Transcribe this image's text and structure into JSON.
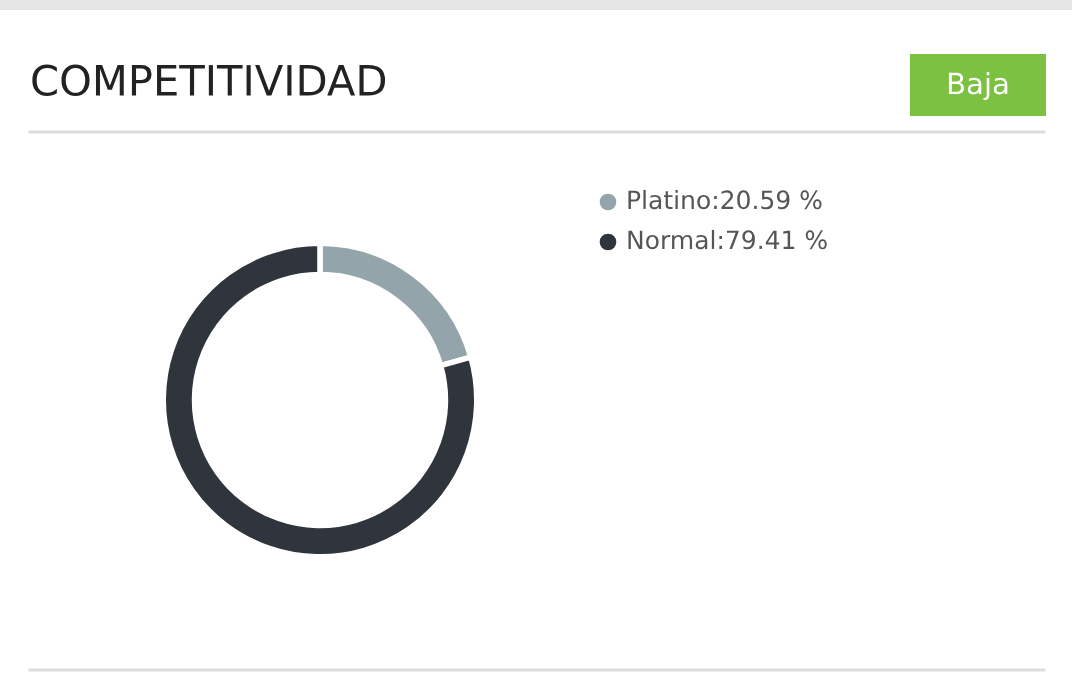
{
  "chart_data": {
    "type": "donut",
    "title": "COMPETITIVIDAD",
    "annotations": [
      "Baja"
    ],
    "categories": [
      "Platino",
      "Normal"
    ],
    "values": [
      20.59,
      79.41
    ],
    "value_labels": [
      "20.59 %",
      "79.41 %"
    ],
    "colors": [
      "#93a5ab",
      "#2f343d"
    ],
    "legend": "top right"
  }
}
